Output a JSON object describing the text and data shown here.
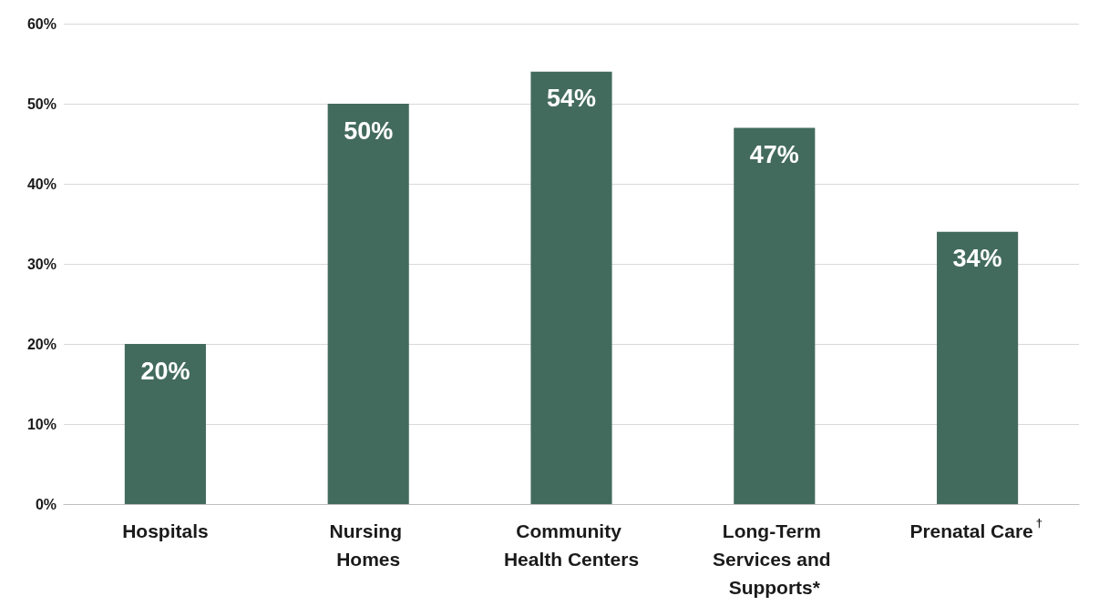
{
  "chart_data": {
    "type": "bar",
    "categories": [
      "Hospitals",
      "Nursing Homes",
      "Community Health Centers",
      "Long-Term Services and Supports*",
      "Prenatal Care$^{†}$"
    ],
    "values": [
      20,
      50,
      54,
      47,
      34
    ],
    "value_labels": [
      "20%",
      "50%",
      "54%",
      "47%",
      "34%"
    ],
    "color": "#436b5d",
    "ylim": [
      0,
      60
    ],
    "yticks": [
      {
        "value": 0,
        "label": "0%"
      },
      {
        "value": 10,
        "label": "10%"
      },
      {
        "value": 20,
        "label": "20%"
      },
      {
        "value": 30,
        "label": "30%"
      },
      {
        "value": 40,
        "label": "40%"
      },
      {
        "value": 50,
        "label": "50%"
      },
      {
        "value": 60,
        "label": "60%"
      }
    ],
    "grid": "y"
  }
}
